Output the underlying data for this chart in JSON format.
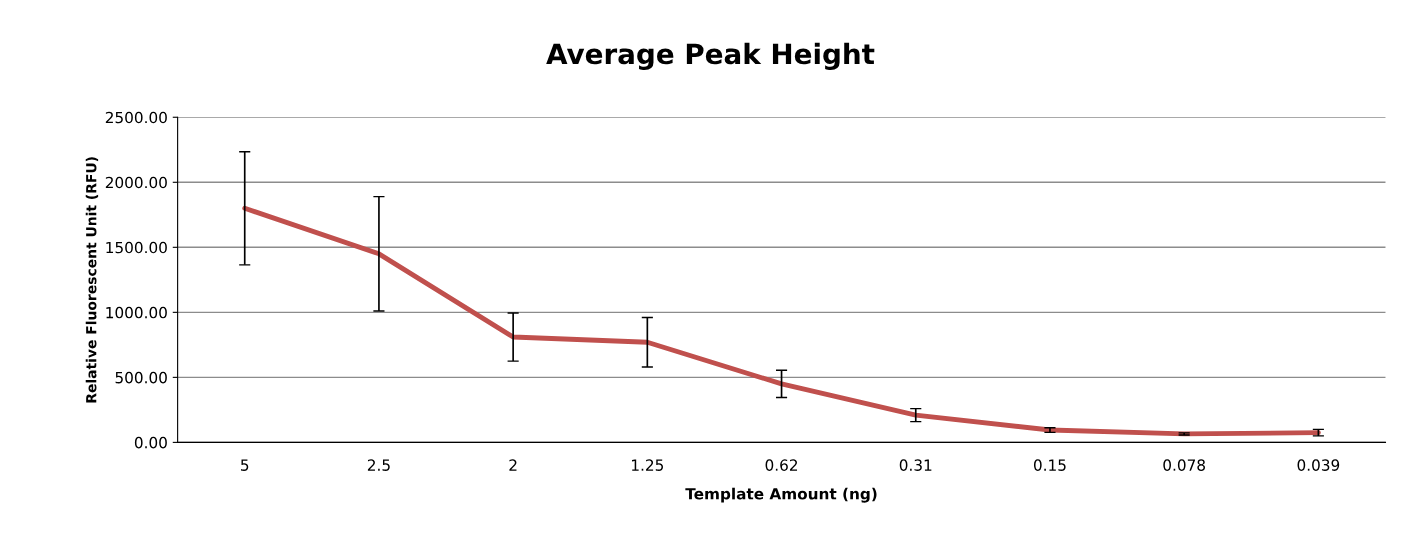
{
  "chart_data": {
    "type": "line",
    "title": "Average Peak Height",
    "xlabel": "Template Amount (ng)",
    "ylabel": "Relative Fluorescent Unit (RFU)",
    "categories": [
      "5",
      "2.5",
      "2",
      "1.25",
      "0.62",
      "0.31",
      "0.15",
      "0.078",
      "0.039"
    ],
    "series": [
      {
        "color": "#c0504d",
        "values": [
          1800,
          1450,
          810,
          770,
          450,
          210,
          95,
          65,
          75
        ],
        "errors": [
          435,
          440,
          185,
          190,
          105,
          50,
          18,
          8,
          25
        ]
      }
    ],
    "ylim": [
      0,
      2500
    ],
    "yticks": [
      {
        "value": 0,
        "label": "0.00"
      },
      {
        "value": 500,
        "label": "500.00"
      },
      {
        "value": 1000,
        "label": "1000.00"
      },
      {
        "value": 1500,
        "label": "1500.00"
      },
      {
        "value": 2000,
        "label": "2000.00"
      },
      {
        "value": 2500,
        "label": "2500.00"
      }
    ],
    "grid": "y",
    "marker": "none",
    "line_style": "solid"
  }
}
